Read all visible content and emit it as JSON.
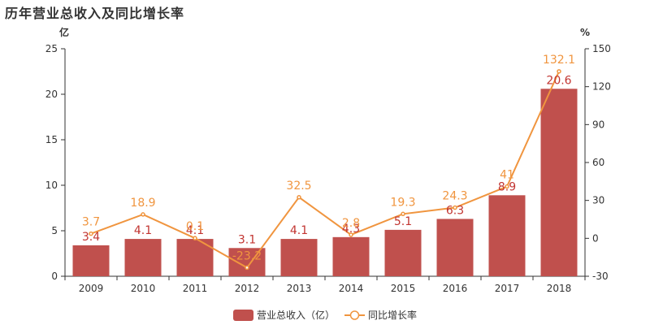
{
  "title": "历年营业总收入及同比增长率",
  "colors": {
    "bar": "#c0504d",
    "line": "#f0953f",
    "axis": "#333333"
  },
  "chart_data": {
    "type": "bar",
    "title": "历年营业总收入及同比增长率",
    "categories": [
      "2009",
      "2010",
      "2011",
      "2012",
      "2013",
      "2014",
      "2015",
      "2016",
      "2017",
      "2018"
    ],
    "y_left_unit": "亿",
    "y_right_unit": "%",
    "ylim_left": [
      0,
      25
    ],
    "yticks_left": [
      "0",
      "5",
      "10",
      "15",
      "20",
      "25"
    ],
    "ylim_right": [
      -30,
      150
    ],
    "yticks_right": [
      "-30",
      "0",
      "30",
      "60",
      "90",
      "120",
      "150"
    ],
    "grid": false,
    "legend_position": "bottom-center",
    "series": [
      {
        "name": "营业总收入（亿）",
        "type": "bar",
        "axis": "left",
        "values": [
          3.4,
          4.1,
          4.1,
          3.1,
          4.1,
          4.3,
          5.1,
          6.3,
          8.9,
          20.6
        ],
        "labels": [
          "3.4",
          "4.1",
          "4.1",
          "3.1",
          "4.1",
          "4.3",
          "5.1",
          "6.3",
          "8.9",
          "20.6"
        ]
      },
      {
        "name": "同比增长率",
        "type": "line",
        "axis": "right",
        "values": [
          3.7,
          18.9,
          0.1,
          -23.2,
          32.5,
          2.8,
          19.3,
          24.3,
          41,
          132.1
        ],
        "labels": [
          "3.7",
          "18.9",
          "0.1",
          "-23.2",
          "32.5",
          "2.8",
          "19.3",
          "24.3",
          "41",
          "132.1"
        ]
      }
    ]
  }
}
